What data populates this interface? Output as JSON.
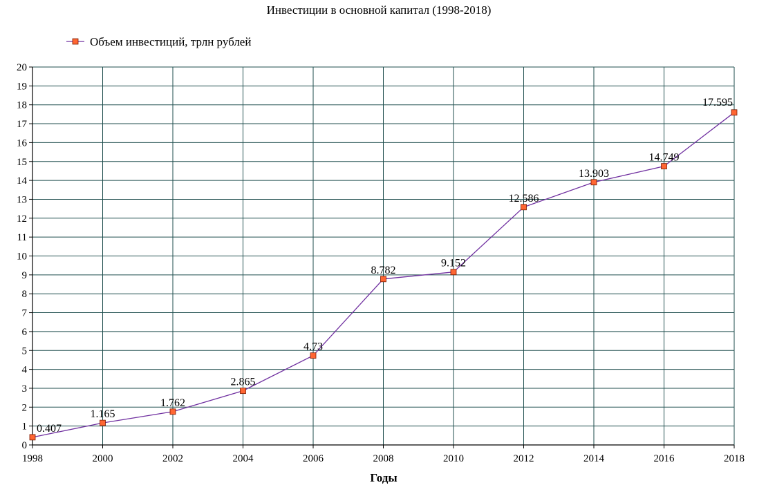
{
  "chart_data": {
    "type": "line",
    "title": "Инвестиции в основной капитал (1998-2018)",
    "xlabel": "Годы",
    "ylabel": "",
    "xlim": [
      1998,
      2018
    ],
    "ylim": [
      0,
      20
    ],
    "x_ticks": [
      1998,
      2000,
      2002,
      2004,
      2006,
      2008,
      2010,
      2012,
      2014,
      2016,
      2018
    ],
    "y_ticks": [
      0,
      1,
      2,
      3,
      4,
      5,
      6,
      7,
      8,
      9,
      10,
      11,
      12,
      13,
      14,
      15,
      16,
      17,
      18,
      19,
      20
    ],
    "grid": true,
    "legend_position": "top-left",
    "series": [
      {
        "name": "Объем инвестиций, трлн рублей",
        "color": "#7030a0",
        "marker_color": "#ff6633",
        "x": [
          1998,
          2000,
          2002,
          2004,
          2006,
          2008,
          2010,
          2012,
          2014,
          2016,
          2018
        ],
        "values": [
          0.407,
          1.165,
          1.762,
          2.865,
          4.73,
          8.782,
          9.152,
          12.586,
          13.903,
          14.749,
          17.595
        ],
        "labels": [
          "0.407",
          "1.165",
          "1.762",
          "2.865",
          "4.73",
          "8.782",
          "9.152",
          "12.586",
          "13.903",
          "14.749",
          "17.595"
        ]
      }
    ],
    "colors": {
      "grid": "#1f4e4e",
      "axis": "#000000"
    }
  }
}
